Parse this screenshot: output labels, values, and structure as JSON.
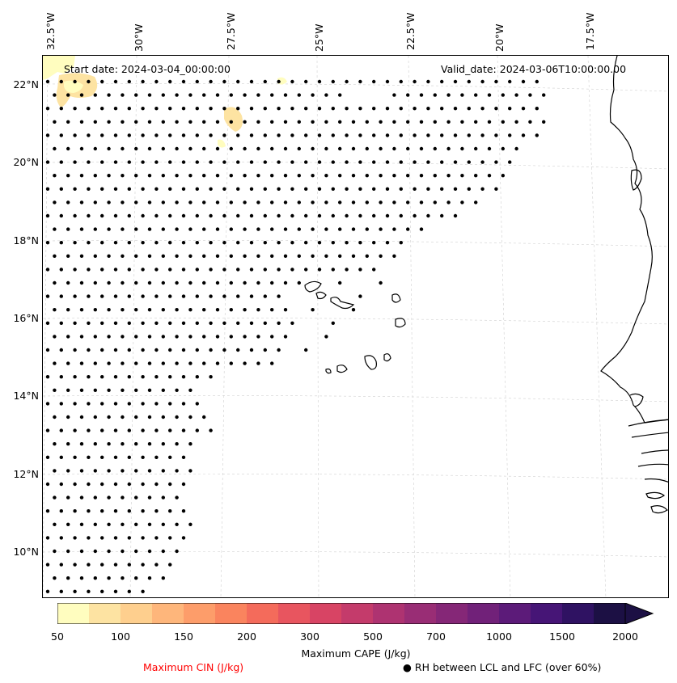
{
  "lon_labels": [
    "32.5°W",
    "30°W",
    "27.5°W",
    "25°W",
    "22.5°W",
    "20°W",
    "17.5°W"
  ],
  "lat_labels": [
    "22°N",
    "20°N",
    "18°N",
    "16°N",
    "14°N",
    "12°N",
    "10°N"
  ],
  "start_date": "Start date: 2024-03-04_00:00:00",
  "valid_date": "Valid_date: 2024-03-06T10:00:00.00",
  "colorbar": {
    "label": "Maximum CAPE (J/kg)",
    "ticks": [
      "50",
      "100",
      "150",
      "200",
      "300",
      "500",
      "700",
      "1000",
      "1500",
      "2000"
    ],
    "colors": [
      "#fffdbf",
      "#fde3a2",
      "#fecf8e",
      "#feb67b",
      "#fd9d6a",
      "#fa845e",
      "#f46b5b",
      "#e8555f",
      "#d84464",
      "#c43b6b",
      "#ae3371",
      "#992d75",
      "#852777",
      "#712179",
      "#5c1b79",
      "#461576",
      "#2f1262",
      "#1c1044"
    ],
    "extend_color": "#1c1044"
  },
  "cin_label": "Maximum CIN (J/kg)",
  "cin_color": "#ff0000",
  "rh_label": "● RH between LCL and LFC (over 60%)"
}
